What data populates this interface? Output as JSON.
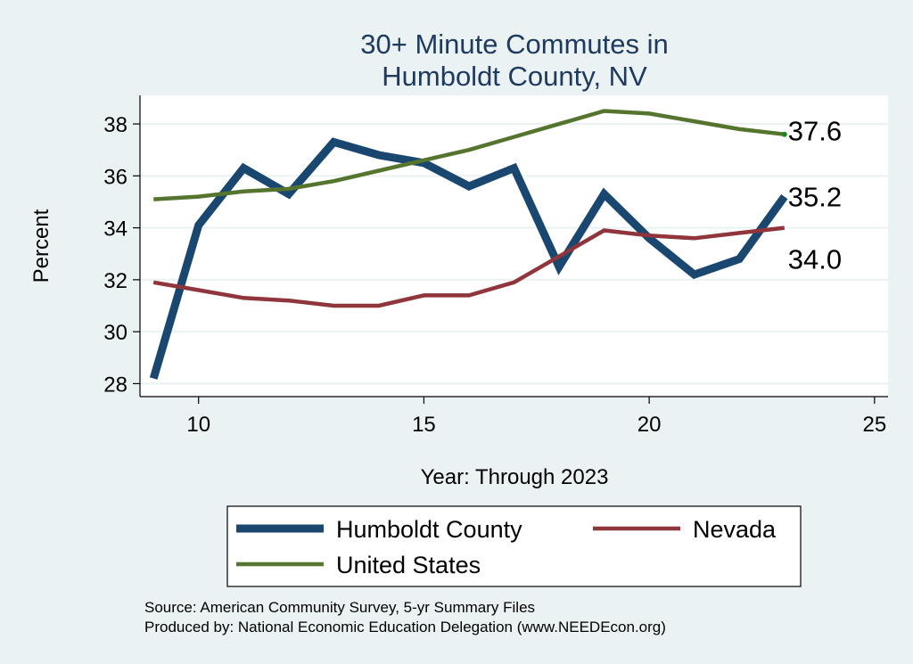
{
  "chart_data": {
    "type": "line",
    "title": [
      "30+ Minute Commutes in",
      "Humboldt County, NV"
    ],
    "xlabel": "Year: Through 2023",
    "ylabel": "Percent",
    "xlim": [
      8.7,
      25.3
    ],
    "ylim": [
      27.5,
      39.1
    ],
    "xticks": [
      10,
      15,
      20,
      25
    ],
    "yticks": [
      28,
      30,
      32,
      34,
      36,
      38
    ],
    "grid": true,
    "series": [
      {
        "name": "Humboldt County",
        "color": "#1a476f",
        "x": [
          9,
          10,
          11,
          12,
          13,
          14,
          15,
          16,
          17,
          18,
          19,
          20,
          21,
          22,
          23
        ],
        "y": [
          28.2,
          34.1,
          36.3,
          35.3,
          37.3,
          36.8,
          36.5,
          35.6,
          36.3,
          32.5,
          35.3,
          33.6,
          32.2,
          32.8,
          35.2
        ],
        "end_label": "35.2"
      },
      {
        "name": "Nevada",
        "color": "#90353b",
        "x": [
          9,
          10,
          11,
          12,
          13,
          14,
          15,
          16,
          17,
          18,
          19,
          20,
          21,
          22,
          23
        ],
        "y": [
          31.9,
          31.6,
          31.3,
          31.2,
          31.0,
          31.0,
          31.4,
          31.4,
          31.9,
          32.9,
          33.9,
          33.7,
          33.6,
          33.8,
          34.0
        ],
        "end_label": "34.0"
      },
      {
        "name": "United States",
        "color": "#55752f",
        "x": [
          9,
          10,
          11,
          12,
          13,
          14,
          15,
          16,
          17,
          18,
          19,
          20,
          21,
          22,
          23
        ],
        "y": [
          35.1,
          35.2,
          35.4,
          35.5,
          35.8,
          36.2,
          36.6,
          37.0,
          37.5,
          38.0,
          38.5,
          38.4,
          38.1,
          37.8,
          37.6
        ],
        "end_label": "37.6"
      }
    ],
    "legend": {
      "position": "bottom",
      "items": [
        "Humboldt County",
        "Nevada",
        "United States"
      ]
    },
    "notes": [
      "Source: American Community Survey, 5-yr Summary Files",
      "Produced by: National Economic Education Delegation (www.NEEDEcon.org)"
    ]
  }
}
